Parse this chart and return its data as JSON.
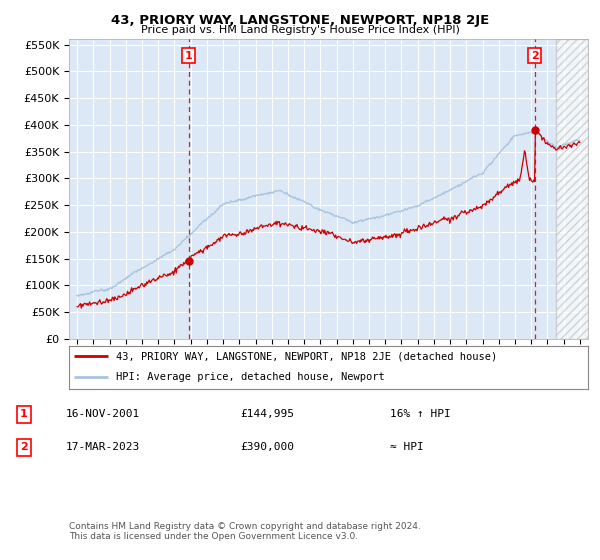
{
  "title": "43, PRIORY WAY, LANGSTONE, NEWPORT, NP18 2JE",
  "subtitle": "Price paid vs. HM Land Registry's House Price Index (HPI)",
  "ylim": [
    0,
    560000
  ],
  "yticks": [
    0,
    50000,
    100000,
    150000,
    200000,
    250000,
    300000,
    350000,
    400000,
    450000,
    500000,
    550000
  ],
  "ytick_labels": [
    "£0",
    "£50K",
    "£100K",
    "£150K",
    "£200K",
    "£250K",
    "£300K",
    "£350K",
    "£400K",
    "£450K",
    "£500K",
    "£550K"
  ],
  "xmin": 1994.5,
  "xmax": 2026.5,
  "xticks": [
    1995,
    1996,
    1997,
    1998,
    1999,
    2000,
    2001,
    2002,
    2003,
    2004,
    2005,
    2006,
    2007,
    2008,
    2009,
    2010,
    2011,
    2012,
    2013,
    2014,
    2015,
    2016,
    2017,
    2018,
    2019,
    2020,
    2021,
    2022,
    2023,
    2024,
    2025,
    2026
  ],
  "hpi_color": "#aac4e0",
  "price_color": "#cc0000",
  "dashed_color": "#cc0000",
  "bg_color": "#dce8f5",
  "grid_color": "#ffffff",
  "sale1_x": 2001.88,
  "sale1_y": 144995,
  "sale2_x": 2023.21,
  "sale2_y": 390000,
  "hatch_start": 2024.5,
  "legend_line1": "43, PRIORY WAY, LANGSTONE, NEWPORT, NP18 2JE (detached house)",
  "legend_line2": "HPI: Average price, detached house, Newport",
  "note1_num": "1",
  "note1_date": "16-NOV-2001",
  "note1_price": "£144,995",
  "note1_hpi": "16% ↑ HPI",
  "note2_num": "2",
  "note2_date": "17-MAR-2023",
  "note2_price": "£390,000",
  "note2_hpi": "≈ HPI",
  "footer": "Contains HM Land Registry data © Crown copyright and database right 2024.\nThis data is licensed under the Open Government Licence v3.0."
}
